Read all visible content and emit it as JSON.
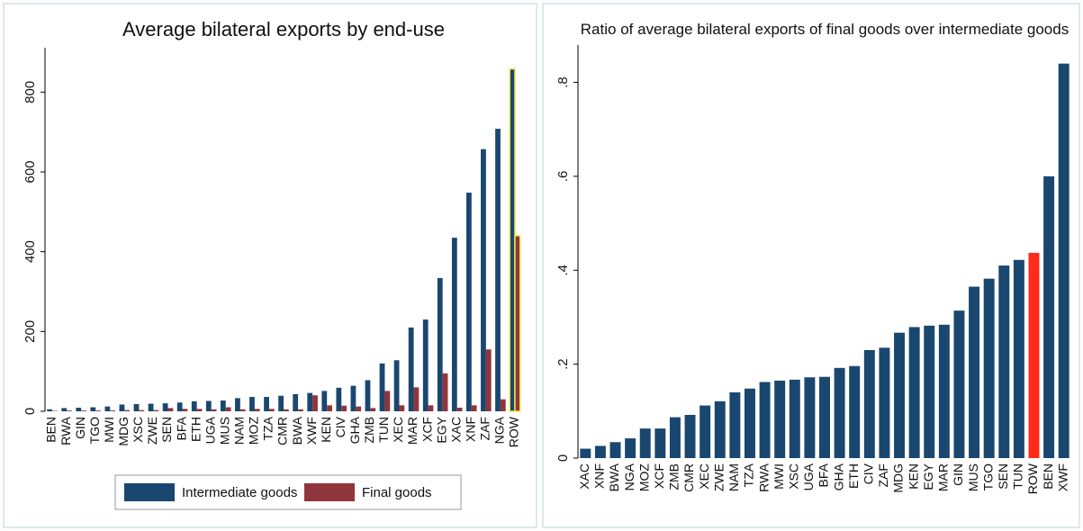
{
  "chart_data": [
    {
      "type": "bar",
      "title": "Average bilateral exports by end-use",
      "categories": [
        "BEN",
        "RWA",
        "GIN",
        "TGO",
        "MWI",
        "MDG",
        "XSC",
        "ZWE",
        "SEN",
        "BFA",
        "ETH",
        "UGA",
        "MUS",
        "NAM",
        "MOZ",
        "TZA",
        "CMR",
        "BWA",
        "XWF",
        "KEN",
        "CIV",
        "GHA",
        "ZMB",
        "TUN",
        "XEC",
        "MAR",
        "XCF",
        "EGY",
        "XAC",
        "XNF",
        "ZAF",
        "NGA",
        "ROW"
      ],
      "series": [
        {
          "name": "Intermediate goods",
          "color": "#1a476f",
          "values": [
            5,
            8,
            9,
            10,
            12,
            17,
            18,
            19,
            20,
            22,
            25,
            26,
            27,
            33,
            36,
            36,
            39,
            43,
            46,
            51,
            59,
            64,
            78,
            120,
            128,
            210,
            230,
            334,
            435,
            548,
            657,
            708,
            858
          ]
        },
        {
          "name": "Final goods",
          "color": "#90353b",
          "values": [
            1,
            2,
            2,
            2,
            2,
            3,
            3,
            3,
            8,
            6,
            6,
            5,
            10,
            5,
            6,
            6,
            5,
            5,
            40,
            15,
            14,
            12,
            8,
            51,
            15,
            60,
            15,
            95,
            9,
            15,
            155,
            30,
            440
          ]
        }
      ],
      "highlight": {
        "category": "ROW",
        "color": "#f2e64a"
      },
      "ylim": [
        0,
        900
      ],
      "yticks": [
        0,
        200,
        400,
        600,
        800
      ],
      "legend": "bottom"
    },
    {
      "type": "bar",
      "title": "Ratio of average bilateral exports of final goods over intermediate goods",
      "categories": [
        "XAC",
        "XNF",
        "BWA",
        "NGA",
        "MOZ",
        "XCF",
        "ZMB",
        "CMR",
        "XEC",
        "ZWE",
        "NAM",
        "TZA",
        "RWA",
        "MWI",
        "XSC",
        "UGA",
        "BFA",
        "GHA",
        "ETH",
        "CIV",
        "ZAF",
        "MDG",
        "KEN",
        "EGY",
        "MAR",
        "GIN",
        "MUS",
        "TGO",
        "SEN",
        "TUN",
        "ROW",
        "BEN",
        "XWF"
      ],
      "values": [
        0.02,
        0.026,
        0.034,
        0.042,
        0.063,
        0.063,
        0.087,
        0.092,
        0.112,
        0.121,
        0.14,
        0.148,
        0.162,
        0.165,
        0.167,
        0.172,
        0.173,
        0.192,
        0.196,
        0.23,
        0.235,
        0.267,
        0.279,
        0.282,
        0.284,
        0.314,
        0.365,
        0.382,
        0.41,
        0.422,
        0.437,
        0.6,
        0.84
      ],
      "color": "#1a476f",
      "highlight": {
        "category": "ROW",
        "color": "#ff2a1a"
      },
      "ylim": [
        0,
        0.87
      ],
      "yticks": [
        0,
        {
          "value": 0.2,
          "label": ".2"
        },
        {
          "value": 0.4,
          "label": ".4"
        },
        {
          "value": 0.6,
          "label": ".6"
        },
        {
          "value": 0.8,
          "label": ".8"
        }
      ]
    }
  ]
}
